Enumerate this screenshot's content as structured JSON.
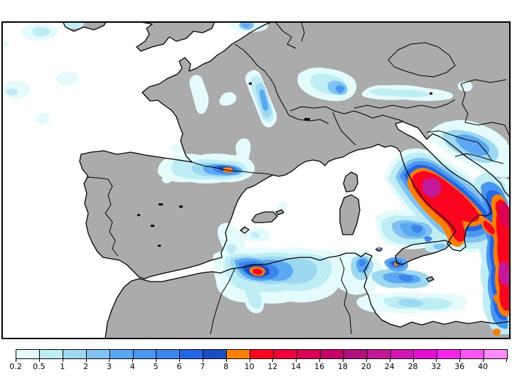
{
  "window": {
    "background": "#FFFFFF"
  },
  "map": {
    "sea_color": "#FFFFFF",
    "land_color": "#ABABAB",
    "line_color": "#000000",
    "description_units": [
      "0.2",
      "0.5",
      "1",
      "2",
      "3",
      "4",
      "5",
      "6",
      "7",
      "8",
      "10",
      "12",
      "14",
      "16",
      "18",
      "20",
      "24",
      "28",
      "32",
      "36",
      "40"
    ]
  },
  "colorbar": {
    "labels": [
      "0.2",
      "0.5",
      "1",
      "2",
      "3",
      "4",
      "5",
      "6",
      "7",
      "8",
      "10",
      "12",
      "14",
      "16",
      "18",
      "20",
      "24",
      "28",
      "32",
      "36",
      "40"
    ],
    "segment_colors": [
      "#E4FBFB",
      "#BFEDF5",
      "#9CD9F0",
      "#7FC3F2",
      "#5AA7F2",
      "#4A97F0",
      "#3A86EB",
      "#2066E6",
      "#1A4FC4",
      "#FF7F00",
      "#FA0520",
      "#F2003C",
      "#DC0055",
      "#C8006A",
      "#B2107E",
      "#C31898",
      "#D512B6",
      "#E90CD2",
      "#F723EC",
      "#FF55F7",
      "#FF8AF8"
    ],
    "border_color": "#000000",
    "text_color": "#000000"
  }
}
